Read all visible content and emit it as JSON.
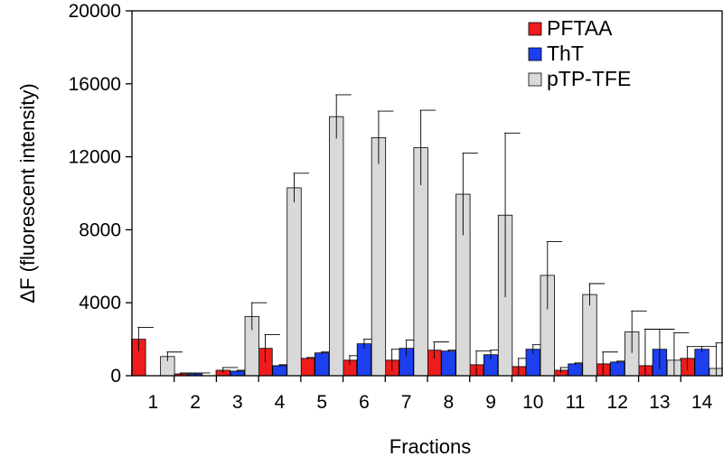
{
  "chart_data": {
    "type": "bar",
    "title": "",
    "xlabel": "Fractions",
    "ylabel": "ΔF (fluorescent intensity)",
    "ylim": [
      0,
      20000
    ],
    "yticks": [
      0,
      4000,
      8000,
      12000,
      16000,
      20000
    ],
    "ytick_labels": [
      "0",
      "4000",
      "8000",
      "12000",
      "16000",
      "20000"
    ],
    "grid": false,
    "legend_position": "top-right",
    "categories": [
      "1",
      "2",
      "3",
      "4",
      "5",
      "6",
      "7",
      "8",
      "9",
      "10",
      "11",
      "12",
      "13",
      "14"
    ],
    "series": [
      {
        "name": "PFTAA",
        "color": "#ee1c1c",
        "values": [
          2000,
          100,
          300,
          1500,
          950,
          850,
          850,
          1400,
          600,
          500,
          300,
          650,
          550,
          950
        ],
        "errors": [
          650,
          50,
          150,
          750,
          50,
          250,
          600,
          450,
          750,
          450,
          150,
          650,
          2000,
          650
        ]
      },
      {
        "name": "ThT",
        "color": "#1c3ff0",
        "values": [
          0,
          100,
          250,
          550,
          1250,
          1750,
          1500,
          1350,
          1150,
          1450,
          650,
          750,
          1450,
          1450
        ],
        "errors": [
          0,
          50,
          50,
          50,
          50,
          250,
          450,
          50,
          250,
          250,
          50,
          50,
          1100,
          150
        ]
      },
      {
        "name": "pTP-TFE",
        "color": "#d9d9d9",
        "values": [
          1050,
          0,
          3250,
          10300,
          14200,
          13050,
          12500,
          9950,
          8800,
          5500,
          4450,
          2400,
          850,
          400
        ],
        "errors": [
          250,
          0,
          750,
          800,
          1200,
          1450,
          2050,
          2250,
          4500,
          1850,
          600,
          1150,
          1500,
          1400
        ]
      }
    ]
  }
}
